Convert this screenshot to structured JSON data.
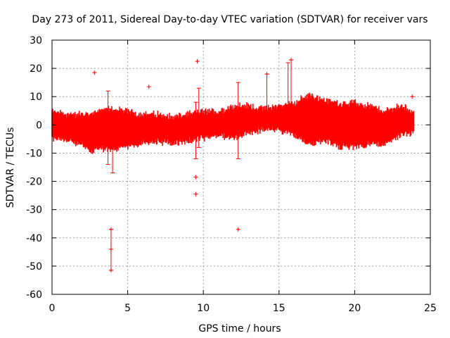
{
  "chart_data": {
    "type": "scatter",
    "title": "Day 273 of 2011, Sidereal Day-to-day VTEC variation (SDTVAR) for receiver vars",
    "xlabel": "GPS time / hours",
    "ylabel": "SDTVAR / TECUs",
    "xlim": [
      0,
      25
    ],
    "ylim": [
      -60,
      30
    ],
    "xticks": [
      0,
      5,
      10,
      15,
      20,
      25
    ],
    "yticks": [
      -60,
      -50,
      -40,
      -30,
      -20,
      -10,
      0,
      10,
      20,
      30
    ],
    "grid": true,
    "series_color": "#ff0000",
    "band": [
      {
        "x": 0.0,
        "lo": -4,
        "hi": 4
      },
      {
        "x": 1.0,
        "lo": -5,
        "hi": 3
      },
      {
        "x": 2.0,
        "lo": -6,
        "hi": 3
      },
      {
        "x": 2.5,
        "lo": -9,
        "hi": 3
      },
      {
        "x": 3.0,
        "lo": -8,
        "hi": 4
      },
      {
        "x": 4.0,
        "lo": -8,
        "hi": 5
      },
      {
        "x": 5.0,
        "lo": -7,
        "hi": 4
      },
      {
        "x": 6.0,
        "lo": -6,
        "hi": 3
      },
      {
        "x": 7.0,
        "lo": -5,
        "hi": 3
      },
      {
        "x": 8.0,
        "lo": -6,
        "hi": 2
      },
      {
        "x": 9.0,
        "lo": -5,
        "hi": 3
      },
      {
        "x": 10.0,
        "lo": -4,
        "hi": 4
      },
      {
        "x": 11.0,
        "lo": -3,
        "hi": 4
      },
      {
        "x": 12.0,
        "lo": -4,
        "hi": 6
      },
      {
        "x": 13.0,
        "lo": -2,
        "hi": 6
      },
      {
        "x": 14.0,
        "lo": -1,
        "hi": 5
      },
      {
        "x": 15.0,
        "lo": -1,
        "hi": 6
      },
      {
        "x": 16.0,
        "lo": -3,
        "hi": 7
      },
      {
        "x": 17.0,
        "lo": -6,
        "hi": 10
      },
      {
        "x": 18.0,
        "lo": -5,
        "hi": 8
      },
      {
        "x": 19.0,
        "lo": -7,
        "hi": 7
      },
      {
        "x": 20.0,
        "lo": -7,
        "hi": 7
      },
      {
        "x": 21.0,
        "lo": -6,
        "hi": 6
      },
      {
        "x": 22.0,
        "lo": -6,
        "hi": 4
      },
      {
        "x": 23.0,
        "lo": -3,
        "hi": 6
      },
      {
        "x": 23.9,
        "lo": -2,
        "hi": 4
      }
    ],
    "outliers": [
      {
        "x": 2.8,
        "y": 18.5
      },
      {
        "x": 9.6,
        "y": 22.5
      },
      {
        "x": 9.5,
        "y": -18.5
      },
      {
        "x": 9.5,
        "y": -24.5
      },
      {
        "x": 12.3,
        "y": -37
      },
      {
        "x": 6.4,
        "y": 13.5
      },
      {
        "x": 14.2,
        "y": 18
      },
      {
        "x": 15.8,
        "y": 23
      },
      {
        "x": 23.8,
        "y": 10
      },
      {
        "x": 3.9,
        "y": -51.5
      },
      {
        "x": 3.9,
        "y": -44
      },
      {
        "x": 3.9,
        "y": -37
      }
    ],
    "error_bars": [
      {
        "x": 3.9,
        "lo": -51.5,
        "hi": -37
      },
      {
        "x": 3.7,
        "lo": -14,
        "hi": 12
      },
      {
        "x": 4.0,
        "lo": -17,
        "hi": 3
      },
      {
        "x": 9.5,
        "lo": -12,
        "hi": 8
      },
      {
        "x": 9.7,
        "lo": -8,
        "hi": 13
      },
      {
        "x": 12.3,
        "lo": -12,
        "hi": 15
      },
      {
        "x": 14.2,
        "lo": 0,
        "hi": 18
      },
      {
        "x": 15.8,
        "lo": -2,
        "hi": 23
      },
      {
        "x": 15.6,
        "lo": 0,
        "hi": 22
      }
    ]
  }
}
